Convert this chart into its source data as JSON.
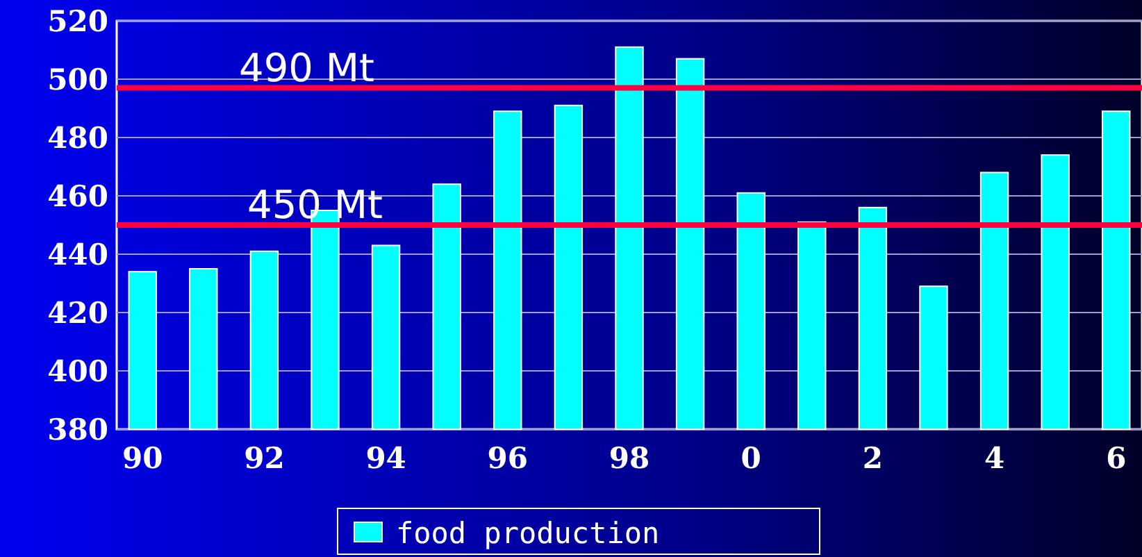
{
  "chart_data": {
    "type": "bar",
    "categories": [
      "90",
      null,
      "92",
      null,
      "94",
      null,
      "96",
      null,
      "98",
      null,
      "0",
      null,
      "2",
      null,
      "4",
      null,
      "6"
    ],
    "series": [
      {
        "name": "food production",
        "color": "#00ffff",
        "values": [
          434,
          435,
          441,
          455,
          443,
          464,
          489,
          491,
          511,
          507,
          461,
          451,
          456,
          429,
          468,
          474,
          489
        ]
      }
    ],
    "ylim": [
      380,
      520
    ],
    "yticks": [
      380,
      400,
      420,
      440,
      460,
      480,
      500,
      520
    ],
    "grid": "y",
    "legend": "bottom",
    "ref_lines": [
      {
        "axis": "y",
        "value": 497,
        "label": "490 Mt",
        "color": "#ff0040"
      },
      {
        "axis": "y",
        "value": 450,
        "label": "450 Mt",
        "color": "#ff0040"
      }
    ]
  }
}
